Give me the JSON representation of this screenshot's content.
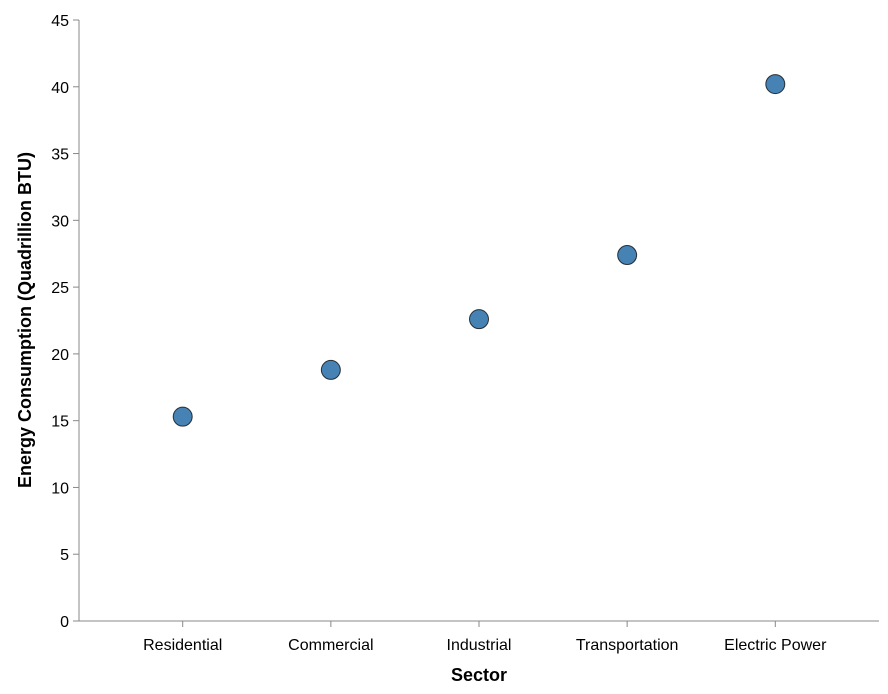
{
  "chart_data": {
    "type": "scatter",
    "title": "",
    "xlabel": "Sector",
    "ylabel": "Energy Consumption (Quadrillion BTU)",
    "categories": [
      "Residential",
      "Commercial",
      "Industrial",
      "Transportation",
      "Electric Power"
    ],
    "values": [
      15.3,
      18.8,
      22.6,
      27.4,
      40.2
    ],
    "ylim": [
      0,
      45
    ],
    "yticks": [
      0,
      5,
      10,
      15,
      20,
      25,
      30,
      35,
      40,
      45
    ],
    "grid": false,
    "point_color": "#4682b4"
  }
}
